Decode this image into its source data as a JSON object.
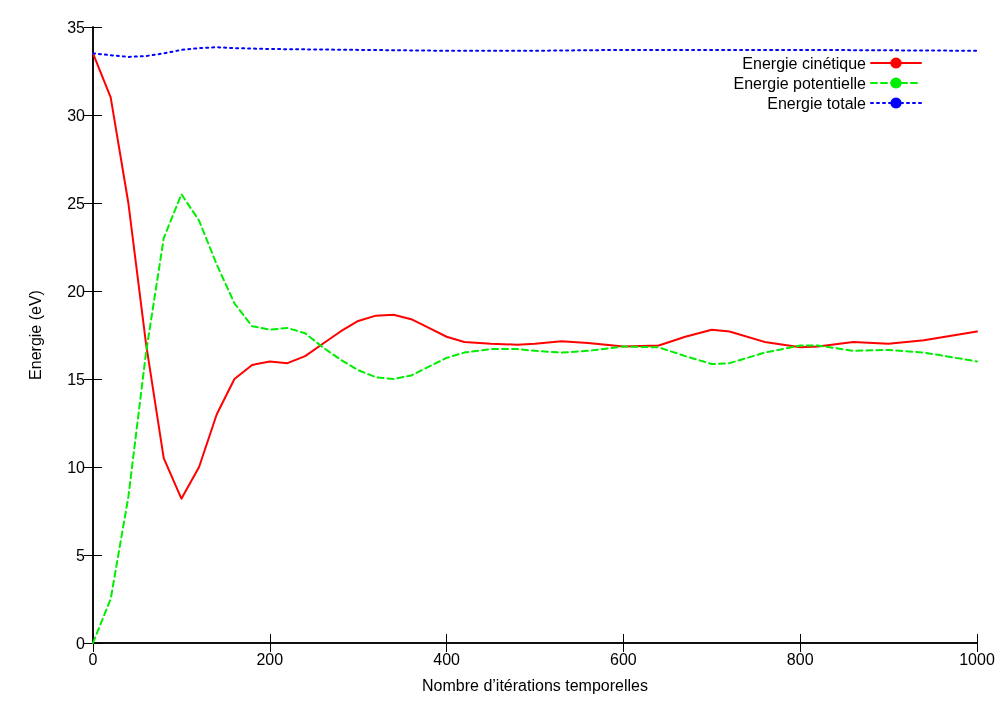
{
  "chart_data": {
    "type": "line",
    "xlabel": "Nombre d’itérations temporelles",
    "ylabel": "Energie (eV)",
    "xlim": [
      0,
      1000
    ],
    "xticks": [
      0,
      200,
      400,
      600,
      800,
      1000
    ],
    "ylim": [
      0,
      35
    ],
    "yticks": [
      0,
      5,
      10,
      15,
      20,
      25,
      30,
      35
    ],
    "grid": false,
    "legend": "top right",
    "marker": "none",
    "series": [
      {
        "name": "Energie cinétique",
        "color": "#ff0000",
        "line_style": "solid",
        "x": [
          0,
          20,
          40,
          60,
          80,
          100,
          120,
          140,
          160,
          180,
          200,
          220,
          240,
          260,
          280,
          300,
          320,
          340,
          360,
          380,
          400,
          420,
          450,
          480,
          500,
          530,
          560,
          600,
          640,
          670,
          700,
          720,
          760,
          800,
          820,
          860,
          900,
          940,
          1000
        ],
        "values": [
          33.5,
          31,
          25,
          17,
          10.5,
          8.2,
          10,
          13,
          15,
          15.8,
          16,
          15.9,
          16.3,
          17,
          17.7,
          18.3,
          18.6,
          18.65,
          18.4,
          17.9,
          17.4,
          17.1,
          17.0,
          16.95,
          17.0,
          17.15,
          17.05,
          16.85,
          16.9,
          17.4,
          17.8,
          17.7,
          17.1,
          16.8,
          16.85,
          17.1,
          17.0,
          17.2,
          17.7
        ]
      },
      {
        "name": "Energie potentielle",
        "color": "#00ee00",
        "line_style": "dashed",
        "x": [
          0,
          20,
          40,
          60,
          80,
          100,
          120,
          140,
          160,
          180,
          200,
          220,
          240,
          260,
          280,
          300,
          320,
          340,
          360,
          380,
          400,
          420,
          450,
          480,
          500,
          530,
          560,
          600,
          640,
          670,
          700,
          720,
          760,
          800,
          820,
          860,
          900,
          940,
          1000
        ],
        "values": [
          0,
          2.5,
          8.3,
          16.5,
          23,
          25.5,
          24,
          21.5,
          19.3,
          18,
          17.8,
          17.9,
          17.6,
          16.8,
          16.1,
          15.5,
          15.1,
          15.0,
          15.2,
          15.7,
          16.2,
          16.5,
          16.7,
          16.7,
          16.6,
          16.5,
          16.6,
          16.85,
          16.8,
          16.3,
          15.85,
          15.9,
          16.5,
          16.9,
          16.9,
          16.6,
          16.65,
          16.5,
          16.0
        ]
      },
      {
        "name": "Energie totale",
        "color": "#0000ff",
        "line_style": "dotted",
        "x": [
          0,
          20,
          40,
          60,
          80,
          100,
          120,
          140,
          160,
          200,
          300,
          400,
          500,
          600,
          700,
          800,
          1000
        ],
        "values": [
          33.5,
          33.4,
          33.3,
          33.35,
          33.5,
          33.7,
          33.8,
          33.85,
          33.8,
          33.75,
          33.7,
          33.65,
          33.65,
          33.7,
          33.7,
          33.7,
          33.65
        ]
      }
    ]
  }
}
